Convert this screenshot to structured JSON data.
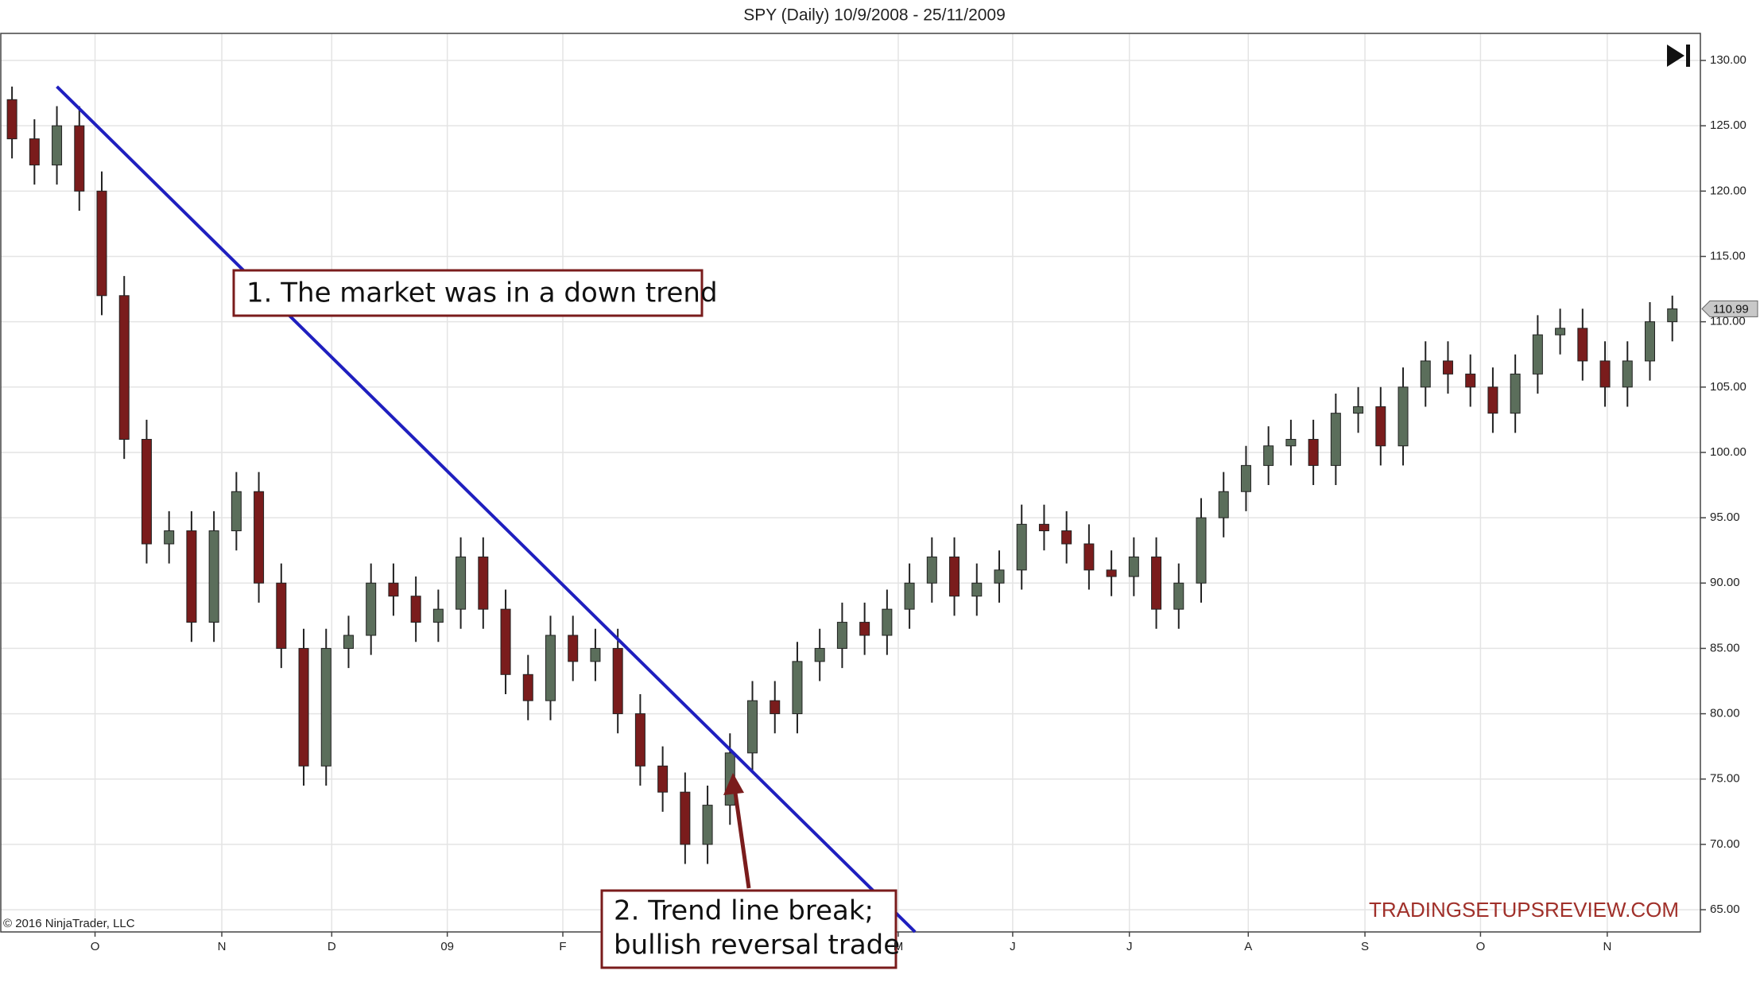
{
  "chart_data": {
    "type": "candlestick",
    "title": "SPY (Daily)  10/9/2008 - 25/11/2009",
    "copyright": "© 2016 NinjaTrader, LLC",
    "watermark": "TRADINGSETUPSREVIEW.COM",
    "categories": [
      null,
      null,
      null,
      null,
      null,
      null,
      null,
      null,
      null,
      null,
      null,
      null,
      null,
      null,
      null,
      null,
      null,
      null,
      null,
      null,
      null,
      null,
      null,
      null,
      null,
      null,
      null,
      null,
      null,
      null,
      null,
      null,
      null,
      null,
      null,
      null,
      null,
      null,
      null,
      null,
      null,
      null,
      null,
      null,
      null,
      null,
      null,
      null,
      null,
      null,
      null,
      null,
      null,
      null,
      null,
      null,
      null,
      null,
      null,
      null,
      null,
      null,
      null,
      null,
      null,
      null,
      null,
      null,
      null,
      null,
      null,
      null,
      null,
      null,
      null
    ],
    "open": [
      127,
      124,
      122,
      125,
      120,
      112,
      101,
      93,
      94,
      87,
      94,
      97,
      90,
      85,
      76,
      85,
      86,
      90,
      89,
      87,
      88,
      92,
      88,
      83,
      81,
      86,
      84,
      85,
      80,
      76,
      74,
      70,
      73,
      77,
      81,
      80,
      84,
      85,
      87,
      86,
      88,
      90,
      92,
      89,
      90,
      91,
      94.5,
      94,
      93,
      91,
      90.5,
      92,
      88,
      90,
      95,
      97,
      99,
      100.5,
      101,
      99,
      103,
      103.5,
      100.5,
      105,
      107,
      106,
      105,
      103,
      106,
      109,
      109.5,
      107,
      105,
      107,
      110
    ],
    "high": [
      128,
      125.5,
      126.5,
      126.5,
      121.5,
      113.5,
      102.5,
      95.5,
      95.5,
      95.5,
      98.5,
      98.5,
      91.5,
      86.5,
      86.5,
      87.5,
      91.5,
      91.5,
      90.5,
      89.5,
      93.5,
      93.5,
      89.5,
      84.5,
      87.5,
      87.5,
      86.5,
      86.5,
      81.5,
      77.5,
      75.5,
      74.5,
      78.5,
      82.5,
      82.5,
      85.5,
      86.5,
      88.5,
      88.5,
      89.5,
      91.5,
      93.5,
      93.5,
      91.5,
      92.5,
      96,
      96,
      95.5,
      94.5,
      92.5,
      93.5,
      93.5,
      91.5,
      96.5,
      98.5,
      100.5,
      102,
      102.5,
      102.5,
      104.5,
      105,
      105,
      106.5,
      108.5,
      108.5,
      107.5,
      106.5,
      107.5,
      110.5,
      111,
      111,
      108.5,
      108.5,
      111.5,
      112
    ],
    "low": [
      122.5,
      120.5,
      120.5,
      118.5,
      110.5,
      99.5,
      91.5,
      91.5,
      85.5,
      85.5,
      92.5,
      88.5,
      83.5,
      74.5,
      74.5,
      83.5,
      84.5,
      87.5,
      85.5,
      85.5,
      86.5,
      86.5,
      81.5,
      79.5,
      79.5,
      82.5,
      82.5,
      78.5,
      74.5,
      72.5,
      68.5,
      68.5,
      71.5,
      75.5,
      78.5,
      78.5,
      82.5,
      83.5,
      84.5,
      84.5,
      86.5,
      88.5,
      87.5,
      87.5,
      88.5,
      89.5,
      92.5,
      91.5,
      89.5,
      89,
      89,
      86.5,
      86.5,
      88.5,
      93.5,
      95.5,
      97.5,
      99,
      97.5,
      97.5,
      101.5,
      99,
      99,
      103.5,
      104.5,
      103.5,
      101.5,
      101.5,
      104.5,
      107.5,
      105.5,
      103.5,
      103.5,
      105.5,
      108.5
    ],
    "close": [
      124,
      122,
      125,
      120,
      112,
      101,
      93,
      94,
      87,
      94,
      97,
      90,
      85,
      76,
      85,
      86,
      90,
      89,
      87,
      88,
      92,
      88,
      83,
      81,
      86,
      84,
      85,
      80,
      76,
      74,
      70,
      73,
      77,
      81,
      80,
      84,
      85,
      87,
      86,
      88,
      90,
      92,
      89,
      90,
      91,
      94.5,
      94,
      93,
      91,
      90.5,
      92,
      88,
      90,
      95,
      97,
      99,
      100.5,
      101,
      99,
      103,
      103.5,
      100.5,
      105,
      107,
      106,
      105,
      103,
      106,
      109,
      109.5,
      107,
      105,
      107,
      110,
      110.99
    ],
    "up_color": "#5b6e5b",
    "down_color": "#7a1c1c",
    "xlim": [
      -0.5,
      75.25
    ],
    "xticks": [
      {
        "value": 3.7,
        "label": "O"
      },
      {
        "value": 9.35,
        "label": "N"
      },
      {
        "value": 14.25,
        "label": "D"
      },
      {
        "value": 19.4,
        "label": "09"
      },
      {
        "value": 24.55,
        "label": "F"
      },
      {
        "value": 39.5,
        "label": "M"
      },
      {
        "value": 44.6,
        "label": "J"
      },
      {
        "value": 49.8,
        "label": "J"
      },
      {
        "value": 55.1,
        "label": "A"
      },
      {
        "value": 60.3,
        "label": "S"
      },
      {
        "value": 65.45,
        "label": "O"
      },
      {
        "value": 71.1,
        "label": "N"
      }
    ],
    "ylim": [
      63.3,
      132.07
    ],
    "yticks": [
      {
        "value": 65,
        "label": "65.00"
      },
      {
        "value": 70,
        "label": "70.00"
      },
      {
        "value": 75,
        "label": "75.00"
      },
      {
        "value": 80,
        "label": "80.00"
      },
      {
        "value": 85,
        "label": "85.00"
      },
      {
        "value": 90,
        "label": "90.00"
      },
      {
        "value": 95,
        "label": "95.00"
      },
      {
        "value": 100,
        "label": "100.00"
      },
      {
        "value": 105,
        "label": "105.00"
      },
      {
        "value": 110,
        "label": "110.00"
      },
      {
        "value": 115,
        "label": "115.00"
      },
      {
        "value": 120,
        "label": "120.00"
      },
      {
        "value": 125,
        "label": "125.00"
      },
      {
        "value": 130,
        "label": "130.00"
      }
    ],
    "grid": true,
    "trendline": {
      "color": "#1f1fbf",
      "x": [
        2,
        40.25
      ],
      "y": [
        128,
        63.3
      ]
    },
    "annotations": [
      {
        "lines": [
          "1. The market was in a down trend"
        ]
      },
      {
        "lines": [
          "2. Trend line break;",
          "bullish reversal trade"
        ]
      }
    ]
  }
}
